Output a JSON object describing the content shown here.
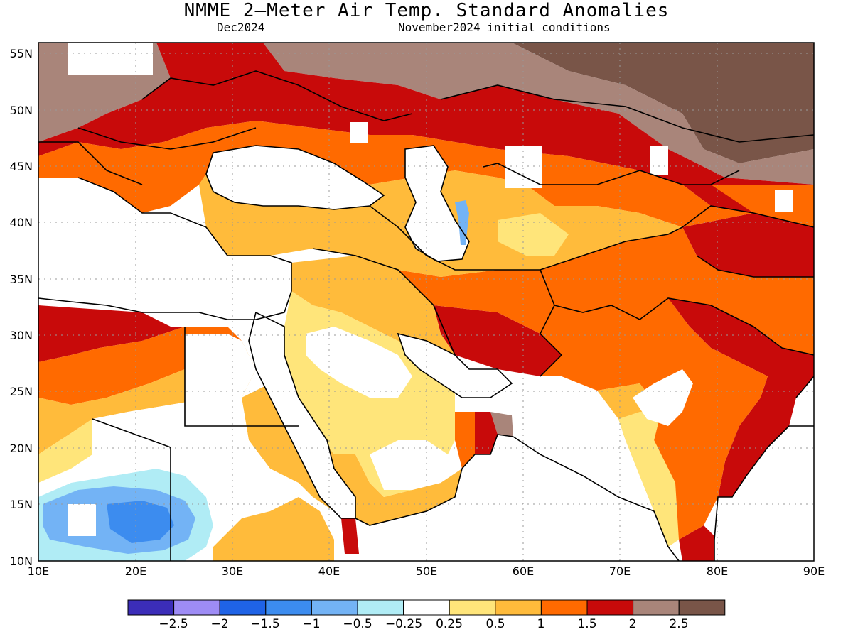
{
  "title": "NMME 2—Meter Air Temp. Standard Anomalies",
  "subtitle_left": "Dec2024",
  "subtitle_right": "November2024 initial conditions",
  "map": {
    "lon_ticks": [
      "10E",
      "20E",
      "30E",
      "40E",
      "50E",
      "60E",
      "70E",
      "80E",
      "90E"
    ],
    "lat_ticks": [
      "55N",
      "50N",
      "45N",
      "40N",
      "35N",
      "30N",
      "25N",
      "20N",
      "15N",
      "10N"
    ],
    "lon_range": [
      10,
      90
    ],
    "lat_range": [
      10,
      56
    ],
    "grid": "dotted",
    "projection": "cylindrical"
  },
  "colorbar": {
    "labels": [
      "−2.5",
      "−2",
      "−1.5",
      "−1",
      "−0.5",
      "−0.25",
      "0.25",
      "0.5",
      "1",
      "1.5",
      "2",
      "2.5"
    ],
    "colors": [
      "#3b2db8",
      "#9e8cf5",
      "#1f63e6",
      "#3c8cef",
      "#73b3f5",
      "#b0ecf5",
      "#ffffff",
      "#ffe57a",
      "#ffbb3b",
      "#ff6a00",
      "#c80a0a",
      "#a9857a",
      "#795548"
    ]
  }
}
